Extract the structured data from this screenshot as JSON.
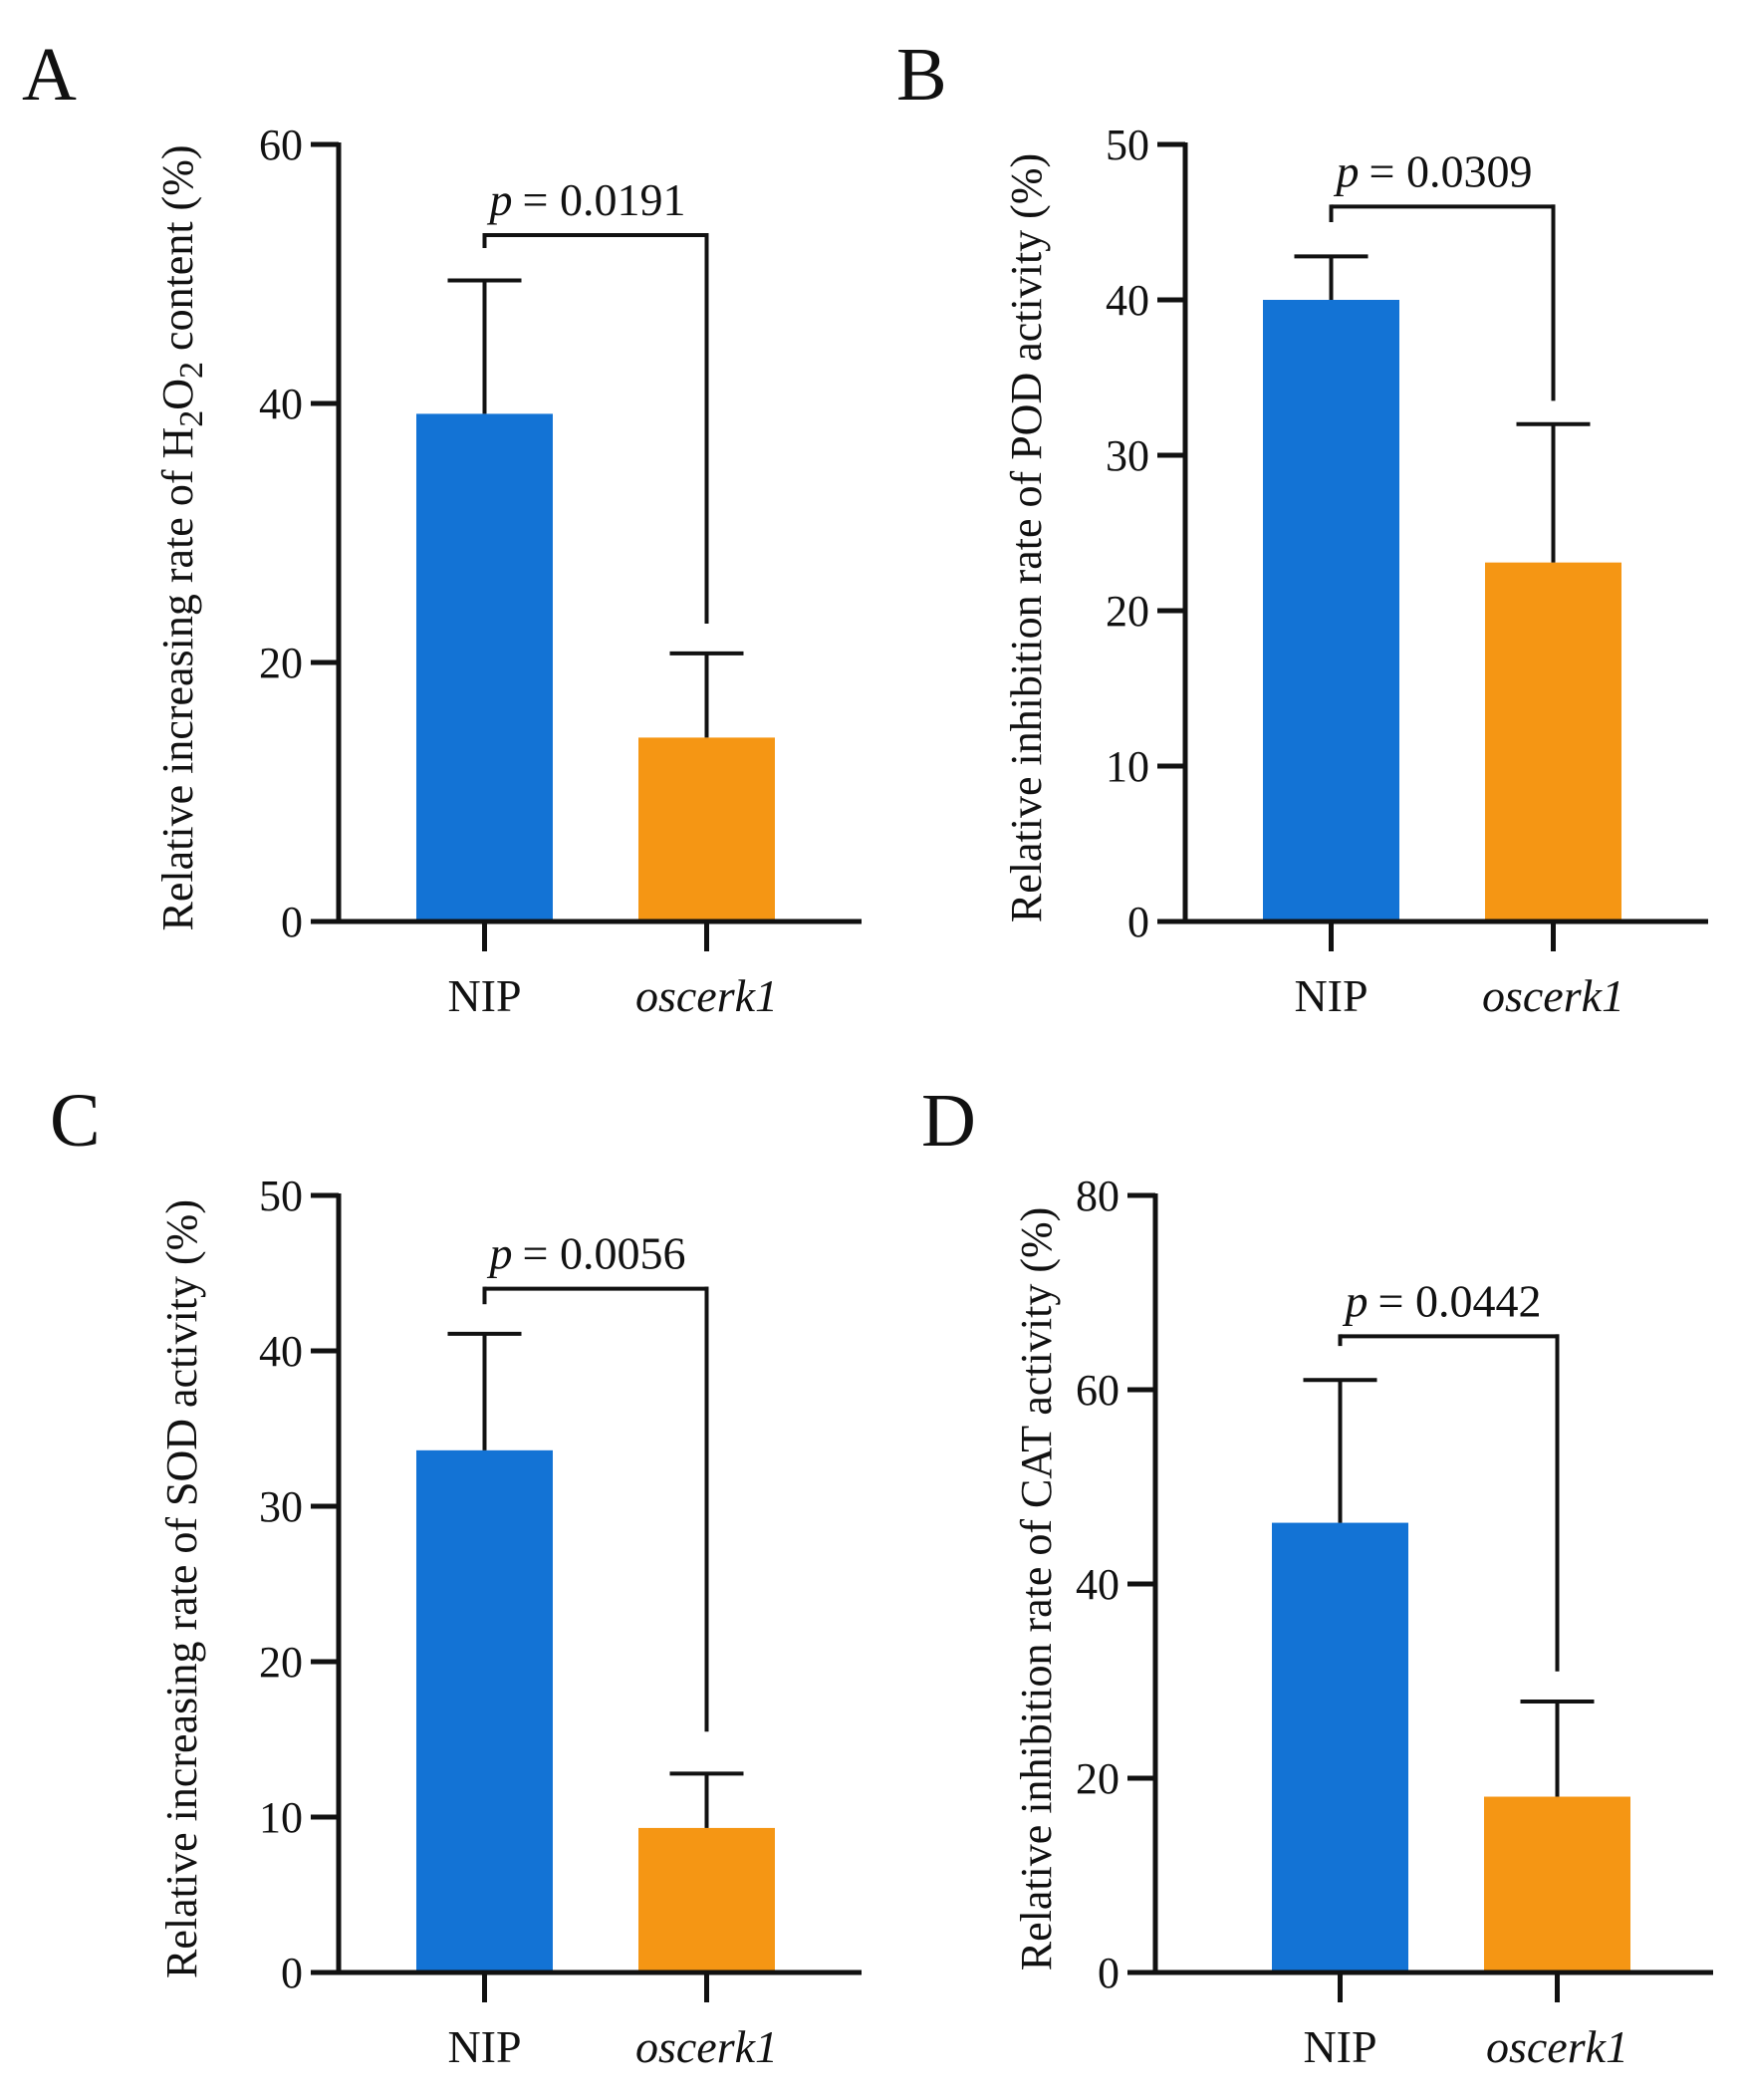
{
  "chart_data": [
    {
      "panel": "A",
      "type": "bar",
      "categories": [
        "NIP",
        "oscerk1"
      ],
      "values": [
        39.2,
        14.2
      ],
      "errors": [
        10.3,
        6.5
      ],
      "ylabel": "Relative increasing rate of H2O2 content (%)",
      "ylabel_parts": {
        "pre": "Relative increasing rate of H",
        "sub1": "2",
        "mid": "O",
        "sub2": "2",
        "post": " content (%)"
      },
      "ylim": [
        0,
        60
      ],
      "yticks": [
        0,
        20,
        40,
        60
      ],
      "pvalue": {
        "symbol": "p",
        "text": "= 0.0191",
        "line_y": 53,
        "left_drop_y": 52,
        "right_drop_y": 23
      },
      "colors": [
        "#1373d5",
        "#f59614"
      ]
    },
    {
      "panel": "B",
      "type": "bar",
      "categories": [
        "NIP",
        "oscerk1"
      ],
      "values": [
        40.0,
        23.1
      ],
      "errors": [
        2.8,
        8.9
      ],
      "ylabel": "Relative inhibition rate of POD activity (%)",
      "ylim": [
        0,
        50
      ],
      "yticks": [
        0,
        10,
        20,
        30,
        40,
        50
      ],
      "pvalue": {
        "symbol": "p",
        "text": "= 0.0309",
        "line_y": 46,
        "left_drop_y": 45,
        "right_drop_y": 33.5
      },
      "colors": [
        "#1373d5",
        "#f59614"
      ]
    },
    {
      "panel": "C",
      "type": "bar",
      "categories": [
        "NIP",
        "oscerk1"
      ],
      "values": [
        33.6,
        9.3
      ],
      "errors": [
        7.5,
        3.5
      ],
      "ylabel": "Relative increasing rate of SOD activity (%)",
      "ylim": [
        0,
        50
      ],
      "yticks": [
        0,
        10,
        20,
        30,
        40,
        50
      ],
      "pvalue": {
        "symbol": "p",
        "text": "= 0.0056",
        "line_y": 44,
        "left_drop_y": 43,
        "right_drop_y": 15.5
      },
      "colors": [
        "#1373d5",
        "#f59614"
      ]
    },
    {
      "panel": "D",
      "type": "bar",
      "categories": [
        "NIP",
        "oscerk1"
      ],
      "values": [
        46.3,
        18.1
      ],
      "errors": [
        14.7,
        9.8
      ],
      "ylabel": "Relative inhibition rate of CAT activity (%)",
      "ylim": [
        0,
        80
      ],
      "yticks": [
        0,
        20,
        40,
        60,
        80
      ],
      "pvalue": {
        "symbol": "p",
        "text": "= 0.0442",
        "line_y": 65.5,
        "left_drop_y": 64.5,
        "right_drop_y": 31
      },
      "colors": [
        "#1373d5",
        "#f59614"
      ]
    }
  ]
}
